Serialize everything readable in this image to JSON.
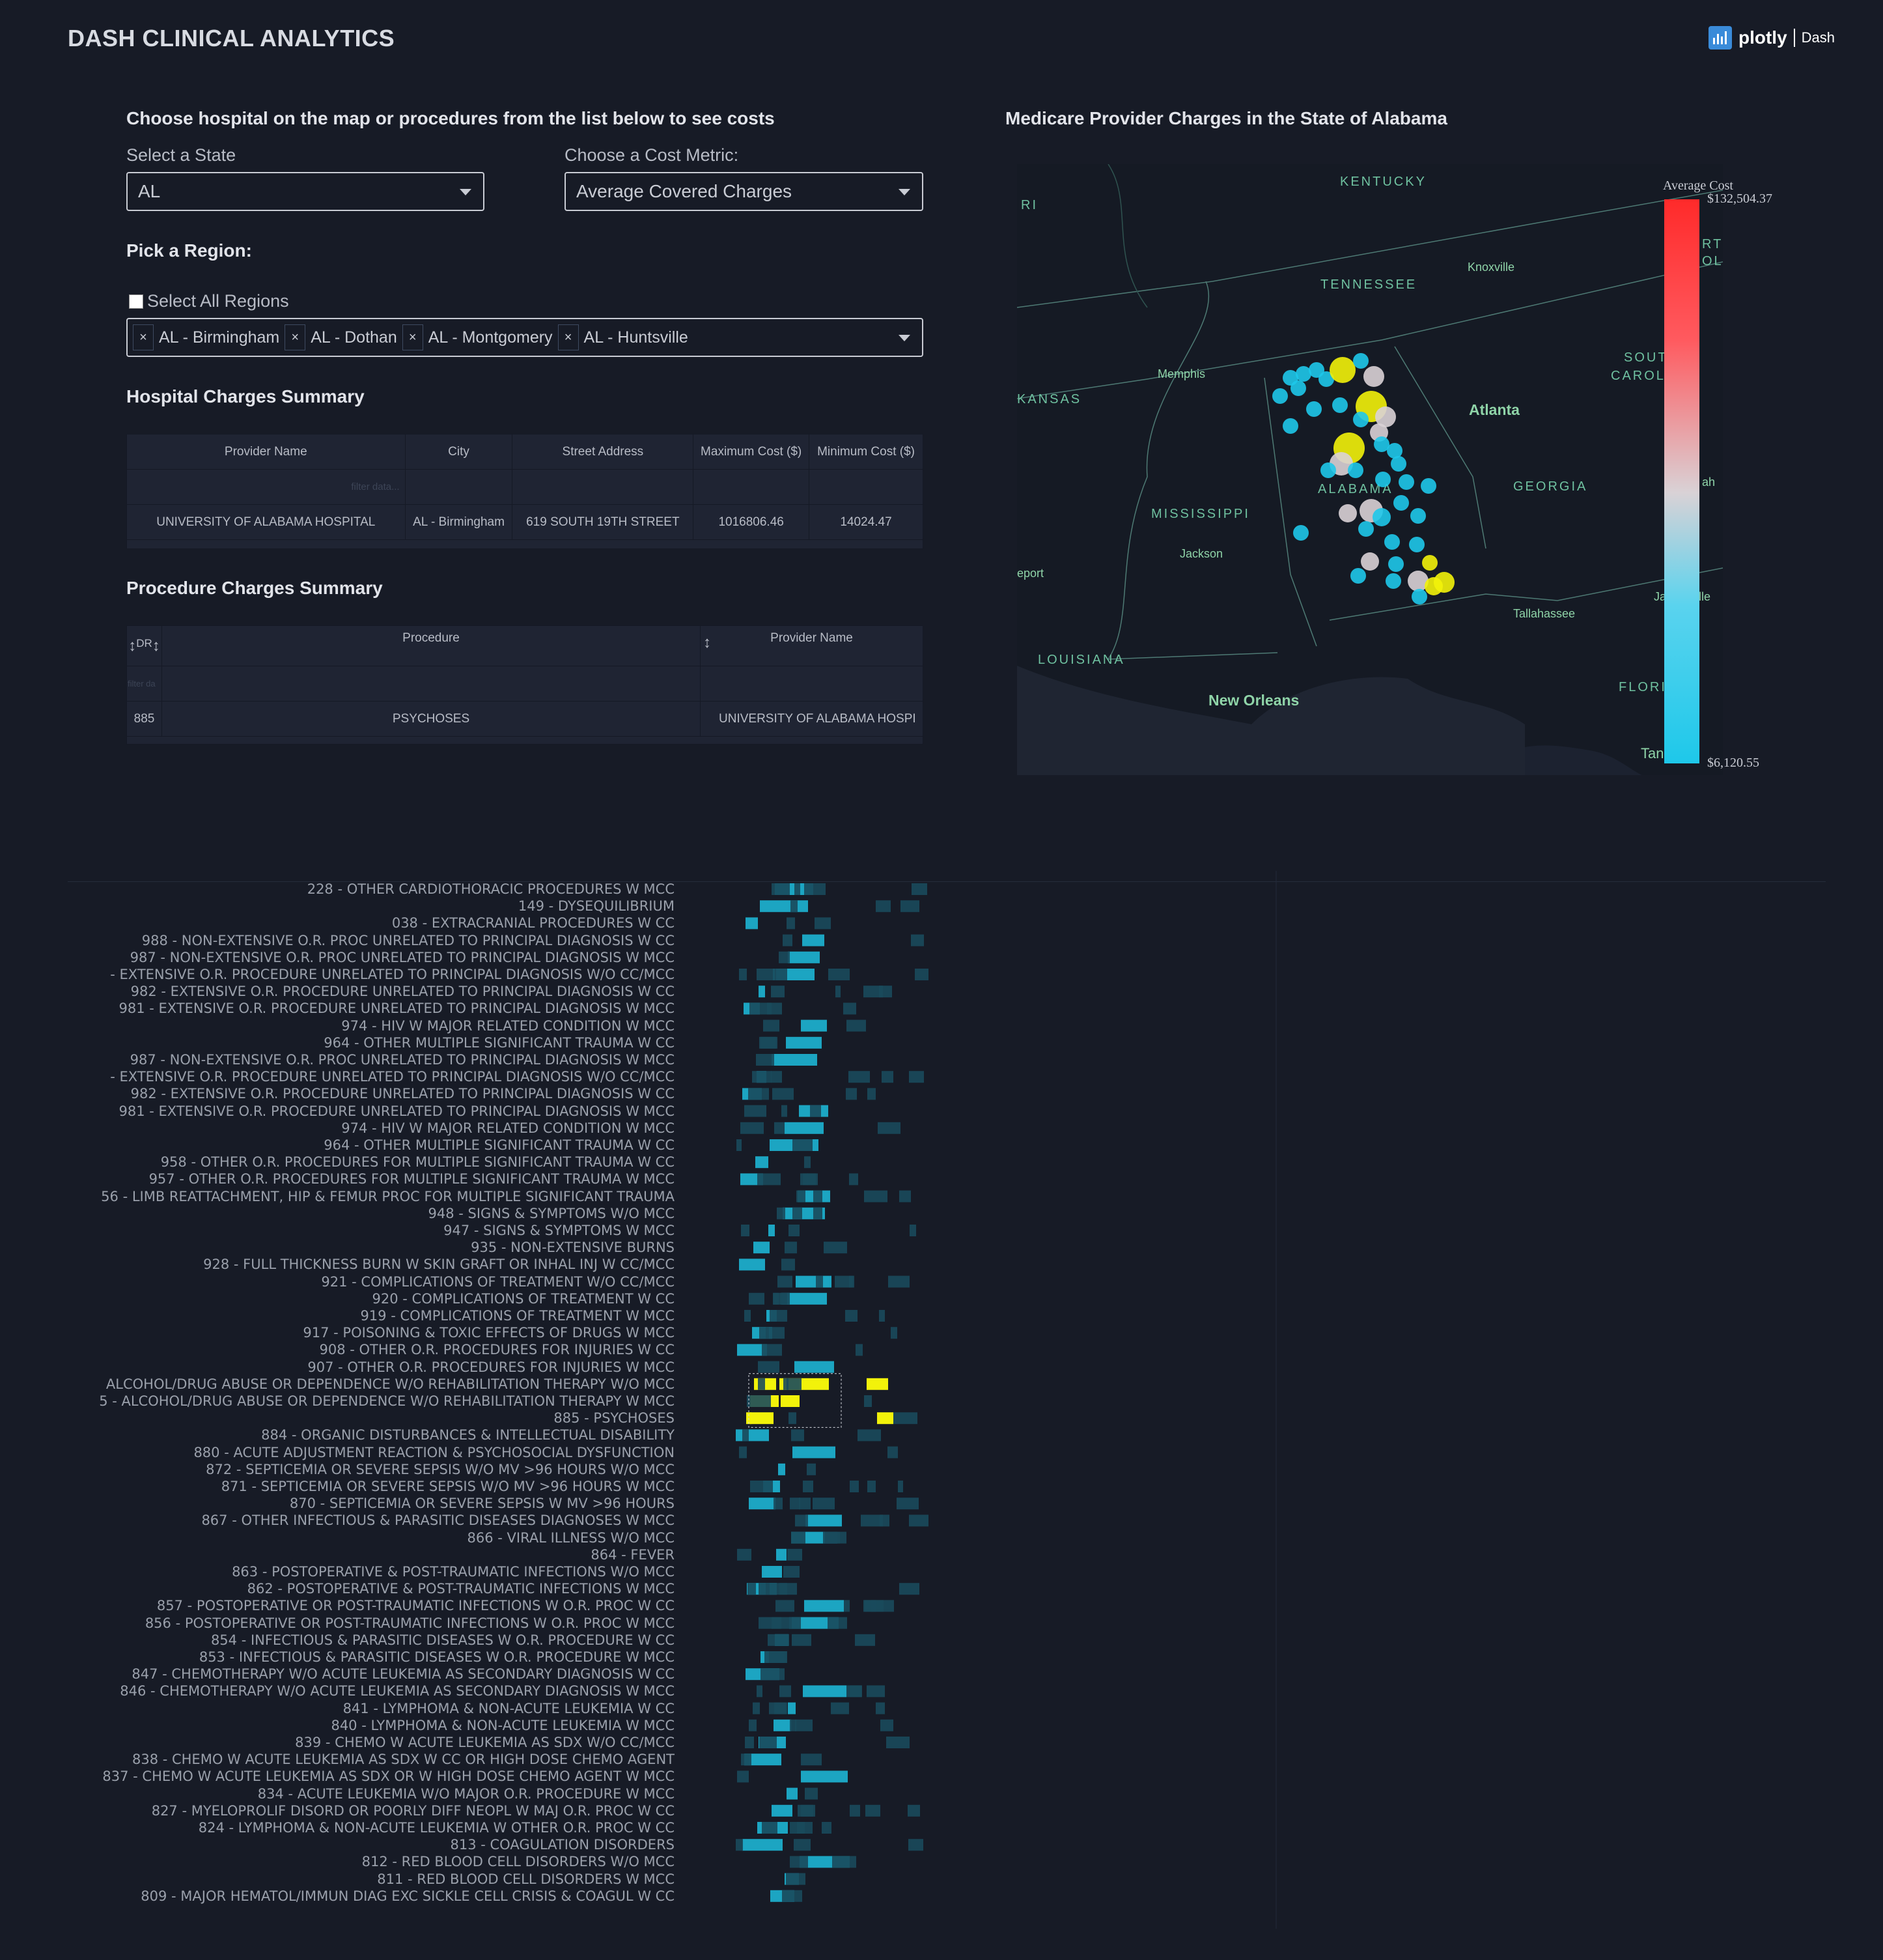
{
  "header": {
    "title": "DASH CLINICAL ANALYTICS",
    "logo_brand": "plotly",
    "logo_product": "Dash"
  },
  "controls": {
    "intro": "Choose hospital on the map or procedures from the list below to see costs",
    "state_label": "Select a State",
    "state_value": "AL",
    "metric_label": "Choose a Cost Metric:",
    "metric_value": "Average Covered Charges",
    "region_label": "Pick a Region:",
    "select_all_label": "Select All Regions",
    "regions": [
      "AL - Birmingham",
      "AL - Dothan",
      "AL - Montgomery",
      "AL - Huntsville"
    ],
    "chip_remove": "×"
  },
  "hospital_summary": {
    "title": "Hospital Charges Summary",
    "columns": [
      "Provider Name",
      "City",
      "Street Address",
      "Maximum Cost ($)",
      "Minimum Cost ($)"
    ],
    "filter_placeholder": "filter data...",
    "row": [
      "UNIVERSITY OF ALABAMA HOSPITAL",
      "AL - Birmingham",
      "619 SOUTH 19TH STREET",
      "1016806.46",
      "14024.47"
    ]
  },
  "procedure_summary": {
    "title": "Procedure Charges Summary",
    "columns": [
      "DR",
      "Procedure",
      "Provider Name"
    ],
    "sort_icon": "↕",
    "filter_placeholder": "filter da",
    "row": [
      "885",
      "PSYCHOSES",
      "UNIVERSITY OF ALABAMA HOSPI"
    ]
  },
  "map": {
    "title": "Medicare Provider Charges in the State of Alabama",
    "colorbar_title": "Average Cost",
    "colorbar_max": "$132,504.37",
    "colorbar_min": "$6,120.55",
    "labels": {
      "kentucky": "KENTUCKY",
      "tennessee": "TENNESSEE",
      "knoxville": "Knoxville",
      "memphis": "Memphis",
      "kansas": "KANSAS",
      "atlanta": "Atlanta",
      "alabama": "ALABAMA",
      "georgia": "GEORGIA",
      "mississippi": "MISSISSIPPI",
      "jackson": "Jackson",
      "eport": "eport",
      "louisiana": "LOUISIANA",
      "new_orleans": "New Orleans",
      "tallahassee": "Tallahassee",
      "flori": "FLORI",
      "tan": "Tan",
      "sout": "SOUT",
      "carol": "CAROL",
      "ri": "RI",
      "rti": "RTI",
      "oli": "OLI",
      "ah": "ah",
      "ja": "Ja",
      "ville": "ville"
    },
    "colors": {
      "low": "#1ec8ea",
      "mid": "#d9d2d6",
      "high": "#ff2a2a",
      "selected": "#f2f20a"
    }
  },
  "heatmap": {
    "procedures": [
      "228 - OTHER CARDIOTHORACIC PROCEDURES W MCC",
      "149 - DYSEQUILIBRIUM",
      "038 - EXTRACRANIAL PROCEDURES W CC",
      "988 - NON-EXTENSIVE O.R. PROC UNRELATED TO PRINCIPAL DIAGNOSIS W CC",
      "987 - NON-EXTENSIVE O.R. PROC UNRELATED TO PRINCIPAL DIAGNOSIS W MCC",
      "- EXTENSIVE O.R. PROCEDURE UNRELATED TO PRINCIPAL DIAGNOSIS W/O CC/MCC",
      "982 - EXTENSIVE O.R. PROCEDURE UNRELATED TO PRINCIPAL DIAGNOSIS W CC",
      "981 - EXTENSIVE O.R. PROCEDURE UNRELATED TO PRINCIPAL DIAGNOSIS W MCC",
      "974 - HIV W MAJOR RELATED CONDITION W MCC",
      "964 - OTHER MULTIPLE SIGNIFICANT TRAUMA W CC",
      "987 - NON-EXTENSIVE O.R. PROC UNRELATED TO PRINCIPAL DIAGNOSIS W MCC",
      "- EXTENSIVE O.R. PROCEDURE UNRELATED TO PRINCIPAL DIAGNOSIS W/O CC/MCC",
      "982 - EXTENSIVE O.R. PROCEDURE UNRELATED TO PRINCIPAL DIAGNOSIS W CC",
      "981 - EXTENSIVE O.R. PROCEDURE UNRELATED TO PRINCIPAL DIAGNOSIS W MCC",
      "974 - HIV W MAJOR RELATED CONDITION W MCC",
      "964 - OTHER MULTIPLE SIGNIFICANT TRAUMA W CC",
      "958 - OTHER O.R. PROCEDURES FOR MULTIPLE SIGNIFICANT TRAUMA W CC",
      "957 - OTHER O.R. PROCEDURES FOR MULTIPLE SIGNIFICANT TRAUMA W MCC",
      "56 - LIMB REATTACHMENT, HIP & FEMUR PROC FOR MULTIPLE SIGNIFICANT TRAUMA",
      "948 - SIGNS & SYMPTOMS W/O MCC",
      "947 - SIGNS & SYMPTOMS W MCC",
      "935 - NON-EXTENSIVE BURNS",
      "928 - FULL THICKNESS BURN W SKIN GRAFT OR INHAL INJ W CC/MCC",
      "921 - COMPLICATIONS OF TREATMENT W/O CC/MCC",
      "920 - COMPLICATIONS OF TREATMENT W CC",
      "919 - COMPLICATIONS OF TREATMENT W MCC",
      "917 - POISONING & TOXIC EFFECTS OF DRUGS W MCC",
      "908 - OTHER O.R. PROCEDURES FOR INJURIES W CC",
      "907 - OTHER O.R. PROCEDURES FOR INJURIES W MCC",
      "ALCOHOL/DRUG ABUSE OR DEPENDENCE W/O REHABILITATION THERAPY W/O MCC",
      "5 - ALCOHOL/DRUG ABUSE OR DEPENDENCE W/O REHABILITATION THERAPY W MCC",
      "885 - PSYCHOSES",
      "884 - ORGANIC DISTURBANCES & INTELLECTUAL DISABILITY",
      "880 - ACUTE ADJUSTMENT REACTION & PSYCHOSOCIAL DYSFUNCTION",
      "872 - SEPTICEMIA OR SEVERE SEPSIS W/O MV >96 HOURS W/O MCC",
      "871 - SEPTICEMIA OR SEVERE SEPSIS W/O MV >96 HOURS W MCC",
      "870 - SEPTICEMIA OR SEVERE SEPSIS W MV >96 HOURS",
      "867 - OTHER INFECTIOUS & PARASITIC DISEASES DIAGNOSES W MCC",
      "866 - VIRAL ILLNESS W/O MCC",
      "864 - FEVER",
      "863 - POSTOPERATIVE & POST-TRAUMATIC INFECTIONS W/O MCC",
      "862 - POSTOPERATIVE & POST-TRAUMATIC INFECTIONS W MCC",
      "857 - POSTOPERATIVE OR POST-TRAUMATIC INFECTIONS W O.R. PROC W CC",
      "856 - POSTOPERATIVE OR POST-TRAUMATIC INFECTIONS W O.R. PROC W MCC",
      "854 - INFECTIOUS & PARASITIC DISEASES W O.R. PROCEDURE W CC",
      "853 - INFECTIOUS & PARASITIC DISEASES W O.R. PROCEDURE W MCC",
      "847 - CHEMOTHERAPY W/O ACUTE LEUKEMIA AS SECONDARY DIAGNOSIS W CC",
      "846 - CHEMOTHERAPY W/O ACUTE LEUKEMIA AS SECONDARY DIAGNOSIS W MCC",
      "841 - LYMPHOMA & NON-ACUTE LEUKEMIA W CC",
      "840 - LYMPHOMA & NON-ACUTE LEUKEMIA W MCC",
      "839 - CHEMO W ACUTE LEUKEMIA AS SDX W/O CC/MCC",
      "838 - CHEMO W ACUTE LEUKEMIA AS SDX W CC OR HIGH DOSE CHEMO AGENT",
      "837 - CHEMO W ACUTE LEUKEMIA AS SDX OR W HIGH DOSE CHEMO AGENT W MCC",
      "834 - ACUTE LEUKEMIA W/O MAJOR O.R. PROCEDURE W MCC",
      "827 - MYELOPROLIF DISORD OR POORLY DIFF NEOPL W MAJ O.R. PROC W CC",
      "824 - LYMPHOMA & NON-ACUTE LEUKEMIA W OTHER O.R. PROC W CC",
      "813 - COAGULATION DISORDERS",
      "812 - RED BLOOD CELL DISORDERS W/O MCC",
      "811 - RED BLOOD CELL DISORDERS W MCC",
      "809 - MAJOR HEMATOL/IMMUN DIAG EXC SICKLE CELL CRISIS & COAGUL W CC"
    ],
    "colors": {
      "low": "#1a4a5c",
      "high": "#1ec8ea",
      "selected": "#f2f20a"
    }
  }
}
